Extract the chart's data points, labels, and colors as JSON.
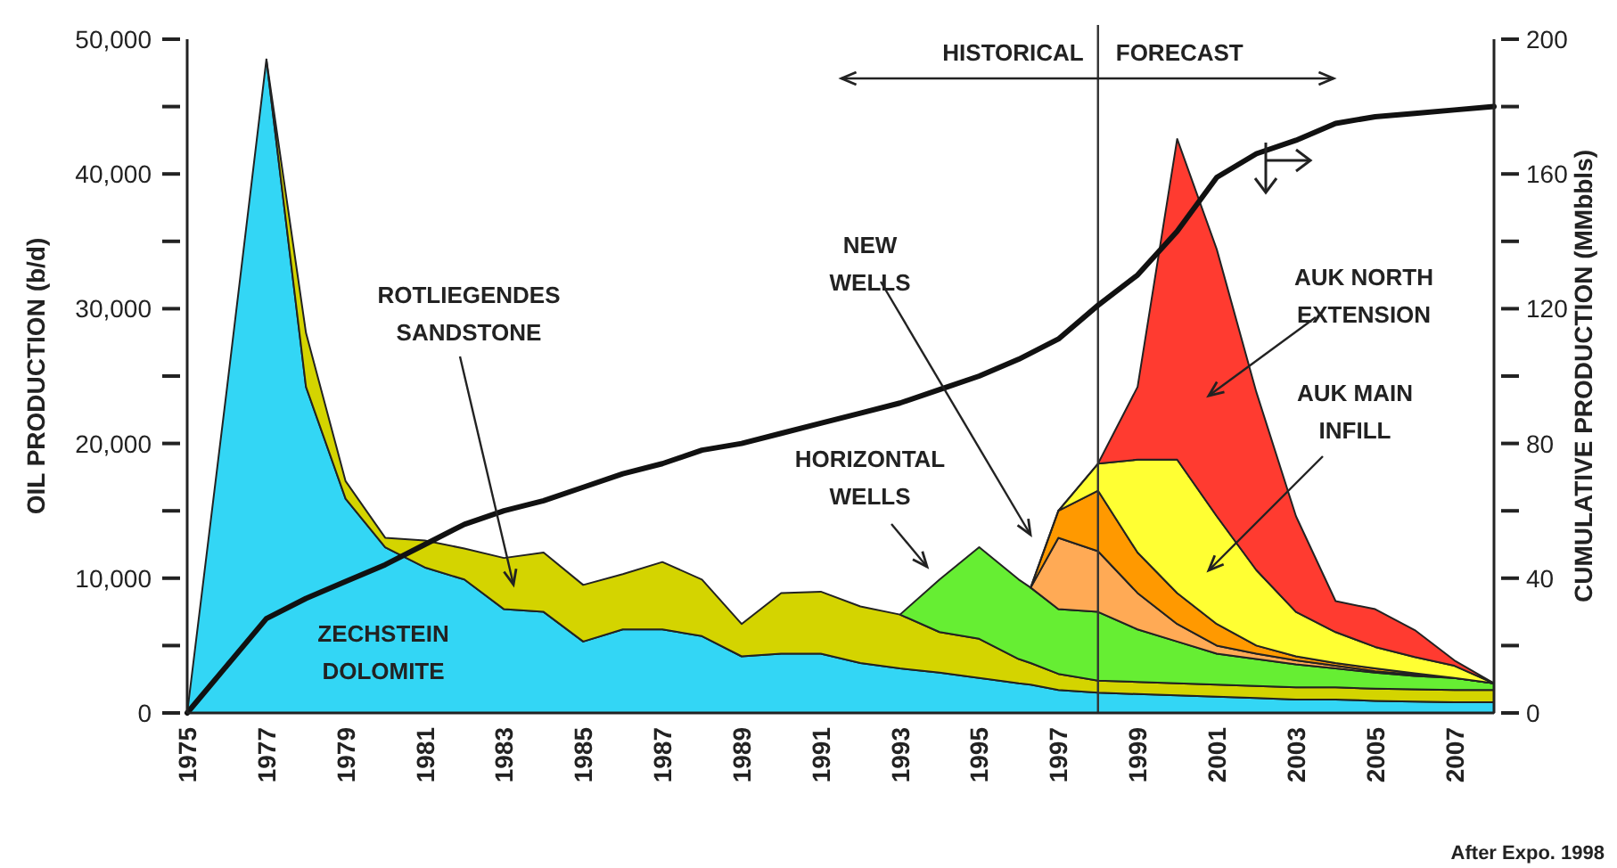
{
  "chart_data": {
    "type": "area",
    "stacked": true,
    "ylabel": "OIL PRODUCTION (b/d)",
    "y2label": "CUMULATIVE PRODUCTION (MMbbls)",
    "x": [
      1975,
      1976,
      1977,
      1978,
      1979,
      1980,
      1981,
      1982,
      1983,
      1984,
      1985,
      1986,
      1987,
      1988,
      1989,
      1990,
      1991,
      1992,
      1993,
      1994,
      1995,
      1996,
      1996.3,
      1997,
      1998,
      1999,
      2000,
      2001,
      2002,
      2003,
      2004,
      2005,
      2006,
      2007,
      2008
    ],
    "xlim": [
      1975,
      2008
    ],
    "xticks": [
      1975,
      1977,
      1979,
      1981,
      1983,
      1985,
      1987,
      1989,
      1991,
      1993,
      1995,
      1997,
      1999,
      2001,
      2003,
      2005,
      2007
    ],
    "ylim": [
      0,
      50000
    ],
    "yticks": [
      0,
      {
        "value": 5000,
        "label": null
      },
      {
        "value": 10000,
        "label": "10,000"
      },
      {
        "value": 15000,
        "label": null
      },
      {
        "value": 20000,
        "label": "20,000"
      },
      {
        "value": 25000,
        "label": null
      },
      {
        "value": 30000,
        "label": "30,000"
      },
      {
        "value": 35000,
        "label": null
      },
      {
        "value": 40000,
        "label": "40,000"
      },
      {
        "value": 45000,
        "label": null
      },
      {
        "value": 50000,
        "label": "50,000"
      }
    ],
    "y2lim": [
      0,
      200
    ],
    "y2ticks": [
      0,
      {
        "value": 20,
        "label": null
      },
      40,
      {
        "value": 60,
        "label": null
      },
      80,
      {
        "value": 100,
        "label": null
      },
      120,
      {
        "value": 140,
        "label": null
      },
      160,
      {
        "value": 180,
        "label": null
      },
      200
    ],
    "grid": false,
    "series": [
      {
        "name": "ZECHSTEIN DOLOMITE",
        "color": "#33d6f5",
        "values": [
          0,
          24000,
          48500,
          24200,
          15900,
          12300,
          10800,
          9900,
          7700,
          7500,
          5300,
          6200,
          6200,
          5700,
          4200,
          4400,
          4400,
          3700,
          3300,
          3000,
          2600,
          2200,
          2100,
          1700,
          1500,
          1400,
          1300,
          1200,
          1100,
          1000,
          1000,
          900,
          850,
          800,
          800
        ]
      },
      {
        "name": "ROTLIEGENDES SANDSTONE",
        "color": "#d4d400",
        "values": [
          null,
          null,
          0,
          4000,
          1300,
          700,
          2000,
          2300,
          3800,
          4400,
          4200,
          4100,
          5000,
          4200,
          2400,
          4500,
          4600,
          4200,
          4000,
          3000,
          2900,
          1800,
          1600,
          1200,
          900,
          900,
          900,
          900,
          900,
          900,
          900,
          900,
          900,
          900,
          900
        ]
      },
      {
        "name": "HORIZONTAL WELLS",
        "color": "#66ee33",
        "values": [
          null,
          null,
          null,
          null,
          null,
          null,
          null,
          null,
          null,
          null,
          null,
          null,
          null,
          null,
          null,
          null,
          null,
          null,
          0,
          3900,
          6800,
          5900,
          5600,
          4800,
          5100,
          3900,
          3100,
          2300,
          2000,
          1700,
          1400,
          1200,
          1000,
          900,
          500
        ]
      },
      {
        "name": "NEW WELLS",
        "color": "#ffaa55",
        "values": [
          null,
          null,
          null,
          null,
          null,
          null,
          null,
          null,
          null,
          null,
          null,
          null,
          null,
          null,
          null,
          null,
          null,
          null,
          null,
          null,
          null,
          null,
          0,
          5300,
          4500,
          2700,
          1300,
          600,
          400,
          300,
          200,
          100,
          100,
          0,
          0
        ]
      },
      {
        "color": "#ff9900",
        "values": [
          null,
          null,
          null,
          null,
          null,
          null,
          null,
          null,
          null,
          null,
          null,
          null,
          null,
          null,
          null,
          null,
          null,
          null,
          null,
          null,
          null,
          null,
          0,
          2000,
          4500,
          3000,
          2300,
          1600,
          600,
          300,
          200,
          200,
          100,
          0,
          0
        ]
      },
      {
        "name": "AUK MAIN INFILL",
        "color": "#ffff33",
        "values": [
          null,
          null,
          null,
          null,
          null,
          null,
          null,
          null,
          null,
          null,
          null,
          null,
          null,
          null,
          null,
          null,
          null,
          null,
          null,
          null,
          null,
          null,
          0,
          0,
          2000,
          6900,
          9900,
          8000,
          5600,
          3300,
          2300,
          1600,
          1200,
          900,
          0
        ]
      },
      {
        "name": "AUK NORTH EXTENSION",
        "color": "#ff3b30",
        "values": [
          null,
          null,
          null,
          null,
          null,
          null,
          null,
          null,
          null,
          null,
          null,
          null,
          null,
          null,
          null,
          null,
          null,
          null,
          null,
          null,
          null,
          null,
          null,
          0,
          0,
          5400,
          23800,
          19800,
          13200,
          7100,
          2300,
          2800,
          2000,
          400,
          0
        ]
      },
      {
        "type": "line",
        "axis": "y2",
        "color": "#111111",
        "x": [
          1975,
          1976,
          1977,
          1978,
          1979,
          1980,
          1981,
          1982,
          1983,
          1984,
          1985,
          1986,
          1987,
          1988,
          1989,
          1990,
          1991,
          1992,
          1993,
          1994,
          1995,
          1996,
          1997,
          1998,
          1999,
          2000,
          2001,
          2002,
          2003,
          2004,
          2005,
          2006,
          2007,
          2008
        ],
        "values": [
          0,
          14,
          28,
          34,
          39,
          44,
          50,
          56,
          60,
          63,
          67,
          71,
          74,
          78,
          80,
          83,
          86,
          89,
          92,
          96,
          100,
          105,
          111,
          121,
          130,
          143,
          159,
          166,
          170,
          175,
          177,
          178,
          179,
          180
        ]
      }
    ],
    "ref_lines": [
      {
        "axis": "x",
        "value": 1998,
        "color": "#333333"
      }
    ],
    "annotations": [
      "HISTORICAL",
      "FORECAST",
      "After Expo. 1998"
    ]
  }
}
